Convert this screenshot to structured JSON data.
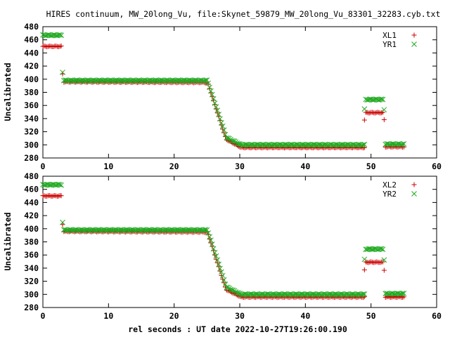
{
  "title": "HIRES continuum, MW_20long_Vu, file:Skynet_59879_MW_20long_Vu_83301_32283.cyb.txt",
  "xlabel": "rel seconds : UT date 2022-10-27T19:26:00.190",
  "colors": {
    "series_a": "#cc0000",
    "series_b": "#22aa22"
  },
  "chart_data": [
    {
      "type": "scatter",
      "ylabel": "Uncalibrated",
      "xlim": [
        0,
        60
      ],
      "ylim": [
        280,
        480
      ],
      "xticks": [
        0,
        10,
        20,
        30,
        40,
        50,
        60
      ],
      "yticks": [
        280,
        300,
        320,
        340,
        360,
        380,
        400,
        420,
        440,
        460,
        480
      ],
      "legend_position": "top-right",
      "series": [
        {
          "name": "XL1",
          "marker": "plus",
          "segments": [
            {
              "x0": 0.0,
              "x1": 2.8,
              "dx": 0.2,
              "y0": 450,
              "y1": 450
            },
            {
              "x0": 3.0,
              "x1": 3.0,
              "dx": 0.2,
              "y0": 408,
              "y1": 408
            },
            {
              "x0": 3.2,
              "x1": 25.0,
              "dx": 0.2,
              "y0": 396,
              "y1": 395
            },
            {
              "x0": 25.2,
              "x1": 27.8,
              "dx": 0.2,
              "y0": 392,
              "y1": 312
            },
            {
              "x0": 28.0,
              "x1": 30.0,
              "dx": 0.2,
              "y0": 308,
              "y1": 297
            },
            {
              "x0": 30.2,
              "x1": 49.0,
              "dx": 0.2,
              "y0": 296,
              "y1": 296
            },
            {
              "x0": 49.0,
              "x1": 49.0,
              "dx": 0.2,
              "y0": 338,
              "y1": 338
            },
            {
              "x0": 49.2,
              "x1": 51.8,
              "dx": 0.2,
              "y0": 349,
              "y1": 349
            },
            {
              "x0": 52.0,
              "x1": 52.0,
              "dx": 0.2,
              "y0": 338,
              "y1": 338
            },
            {
              "x0": 52.2,
              "x1": 55.0,
              "dx": 0.2,
              "y0": 297,
              "y1": 297
            }
          ]
        },
        {
          "name": "YR1",
          "marker": "cross",
          "segments": [
            {
              "x0": 0.0,
              "x1": 2.8,
              "dx": 0.2,
              "y0": 467,
              "y1": 467
            },
            {
              "x0": 3.0,
              "x1": 3.0,
              "dx": 0.2,
              "y0": 411,
              "y1": 411
            },
            {
              "x0": 3.2,
              "x1": 25.0,
              "dx": 0.2,
              "y0": 398,
              "y1": 398
            },
            {
              "x0": 25.2,
              "x1": 27.8,
              "dx": 0.2,
              "y0": 394,
              "y1": 316
            },
            {
              "x0": 28.0,
              "x1": 30.0,
              "dx": 0.2,
              "y0": 311,
              "y1": 301
            },
            {
              "x0": 30.2,
              "x1": 49.0,
              "dx": 0.2,
              "y0": 300,
              "y1": 300
            },
            {
              "x0": 49.0,
              "x1": 49.0,
              "dx": 0.2,
              "y0": 354,
              "y1": 354
            },
            {
              "x0": 49.2,
              "x1": 51.8,
              "dx": 0.2,
              "y0": 369,
              "y1": 369
            },
            {
              "x0": 52.0,
              "x1": 52.0,
              "dx": 0.2,
              "y0": 354,
              "y1": 354
            },
            {
              "x0": 52.2,
              "x1": 55.0,
              "dx": 0.2,
              "y0": 301,
              "y1": 301
            }
          ]
        }
      ]
    },
    {
      "type": "scatter",
      "ylabel": "Uncalibrated",
      "xlim": [
        0,
        60
      ],
      "ylim": [
        280,
        480
      ],
      "xticks": [
        0,
        10,
        20,
        30,
        40,
        50,
        60
      ],
      "yticks": [
        280,
        300,
        320,
        340,
        360,
        380,
        400,
        420,
        440,
        460,
        480
      ],
      "legend_position": "top-right",
      "series": [
        {
          "name": "XL2",
          "marker": "plus",
          "segments": [
            {
              "x0": 0.0,
              "x1": 2.8,
              "dx": 0.2,
              "y0": 450,
              "y1": 450
            },
            {
              "x0": 3.0,
              "x1": 3.0,
              "dx": 0.2,
              "y0": 407,
              "y1": 407
            },
            {
              "x0": 3.2,
              "x1": 25.0,
              "dx": 0.2,
              "y0": 396,
              "y1": 395
            },
            {
              "x0": 25.2,
              "x1": 27.8,
              "dx": 0.2,
              "y0": 391,
              "y1": 311
            },
            {
              "x0": 28.0,
              "x1": 30.0,
              "dx": 0.2,
              "y0": 307,
              "y1": 297
            },
            {
              "x0": 30.2,
              "x1": 49.0,
              "dx": 0.2,
              "y0": 296,
              "y1": 296
            },
            {
              "x0": 49.0,
              "x1": 49.0,
              "dx": 0.2,
              "y0": 337,
              "y1": 337
            },
            {
              "x0": 49.2,
              "x1": 51.8,
              "dx": 0.2,
              "y0": 349,
              "y1": 349
            },
            {
              "x0": 52.0,
              "x1": 52.0,
              "dx": 0.2,
              "y0": 337,
              "y1": 337
            },
            {
              "x0": 52.2,
              "x1": 55.0,
              "dx": 0.2,
              "y0": 296,
              "y1": 296
            }
          ]
        },
        {
          "name": "YR2",
          "marker": "cross",
          "segments": [
            {
              "x0": 0.0,
              "x1": 2.8,
              "dx": 0.2,
              "y0": 467,
              "y1": 467
            },
            {
              "x0": 3.0,
              "x1": 3.0,
              "dx": 0.2,
              "y0": 410,
              "y1": 410
            },
            {
              "x0": 3.2,
              "x1": 25.0,
              "dx": 0.2,
              "y0": 398,
              "y1": 398
            },
            {
              "x0": 25.2,
              "x1": 27.8,
              "dx": 0.2,
              "y0": 394,
              "y1": 316
            },
            {
              "x0": 28.0,
              "x1": 30.0,
              "dx": 0.2,
              "y0": 311,
              "y1": 301
            },
            {
              "x0": 30.2,
              "x1": 49.0,
              "dx": 0.2,
              "y0": 300,
              "y1": 300
            },
            {
              "x0": 49.0,
              "x1": 49.0,
              "dx": 0.2,
              "y0": 353,
              "y1": 353
            },
            {
              "x0": 49.2,
              "x1": 51.8,
              "dx": 0.2,
              "y0": 369,
              "y1": 369
            },
            {
              "x0": 52.0,
              "x1": 52.0,
              "dx": 0.2,
              "y0": 353,
              "y1": 353
            },
            {
              "x0": 52.2,
              "x1": 55.0,
              "dx": 0.2,
              "y0": 301,
              "y1": 301
            }
          ]
        }
      ]
    }
  ]
}
